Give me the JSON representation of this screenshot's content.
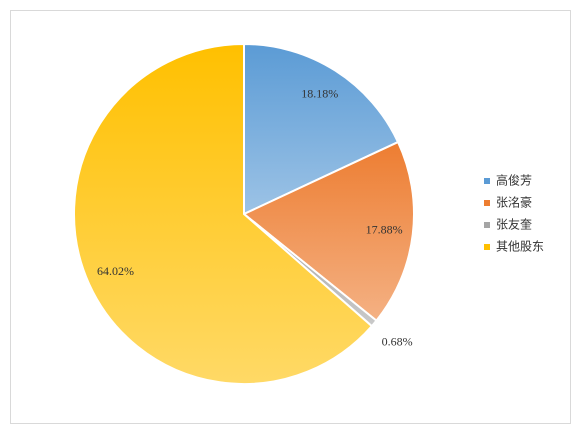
{
  "chart_data": {
    "type": "pie",
    "categories": [
      "高俊芳",
      "张洺豪",
      "张友奎",
      "其他股东"
    ],
    "values": [
      18.18,
      17.88,
      0.68,
      64.02
    ],
    "value_labels": [
      "18.18%",
      "17.88%",
      "0.68%",
      "64.02%"
    ],
    "colors": [
      "#5b9bd5",
      "#ed7d31",
      "#a5a5a5",
      "#ffc000"
    ],
    "legend": "right"
  }
}
